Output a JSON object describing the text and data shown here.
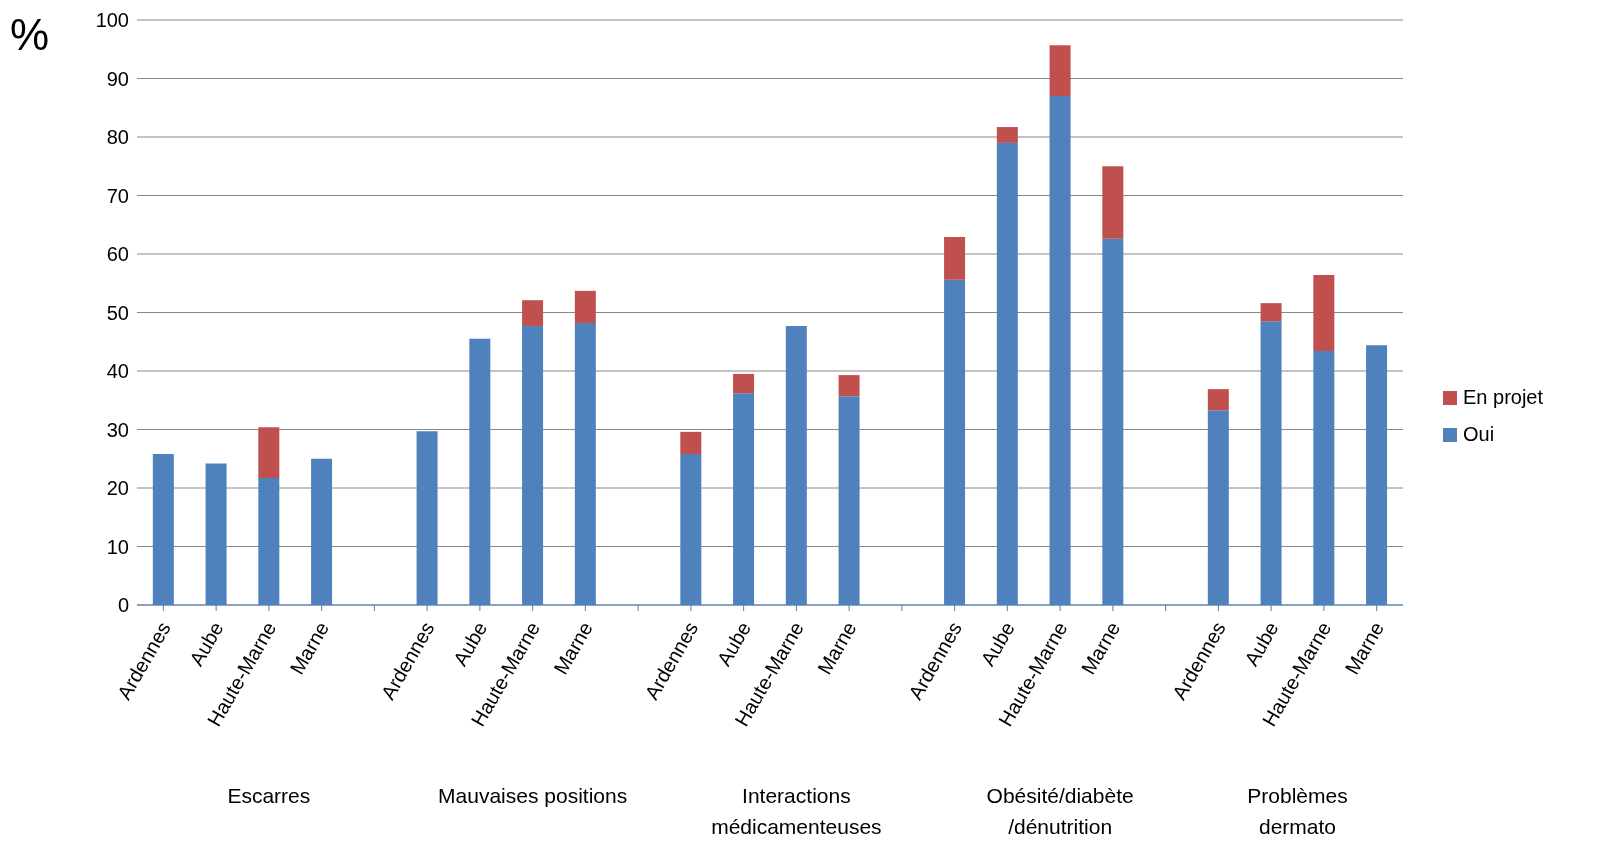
{
  "chart_data": {
    "type": "bar",
    "stacked": true,
    "ylabel": "%",
    "categories": [
      "Ardennes",
      "Aube",
      "Haute-Marne",
      "Marne",
      null,
      "Ardennes",
      "Aube",
      "Haute-Marne",
      "Marne",
      null,
      "Ardennes",
      "Aube",
      "Haute-Marne",
      "Marne",
      null,
      "Ardennes",
      "Aube",
      "Haute-Marne",
      "Marne",
      null,
      "Ardennes",
      "Aube",
      "Haute-Marne",
      "Marne"
    ],
    "series": [
      {
        "name": "Oui",
        "color": "#4f81bd",
        "values": [
          25.8,
          24.2,
          21.7,
          25,
          null,
          29.7,
          45.5,
          47.7,
          48.2,
          null,
          25.8,
          36.2,
          47.7,
          35.7,
          null,
          55.6,
          79,
          87,
          62.6,
          null,
          33.3,
          48.5,
          43.4,
          44.4
        ]
      },
      {
        "name": "En projet",
        "color": "#c0504d",
        "values": [
          0,
          0,
          8.7,
          0,
          null,
          0,
          0,
          4.4,
          5.5,
          null,
          3.8,
          3.3,
          0,
          3.6,
          null,
          7.3,
          2.7,
          8.7,
          12.4,
          null,
          3.6,
          3.1,
          13,
          0
        ]
      }
    ],
    "annotations": [
      "Escarres",
      "Mauvaises positions",
      "Interactions médicamenteuses",
      "Obésité/diabète /dénutrition",
      "Problèmes dermato"
    ],
    "ylim": [
      0,
      100
    ],
    "yticks": [
      0,
      10,
      20,
      30,
      40,
      50,
      60,
      70,
      80,
      90,
      100
    ],
    "grid": "y",
    "legend": "right"
  }
}
